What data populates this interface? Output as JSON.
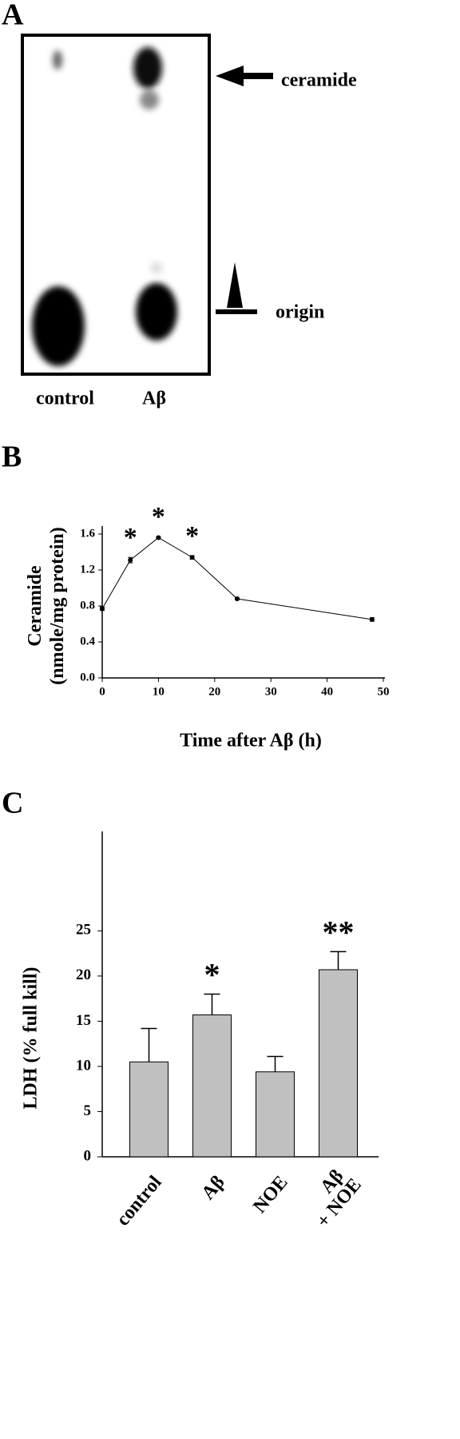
{
  "panel_a": {
    "label": "A",
    "band_labels": [
      "ceramide",
      "origin"
    ],
    "lanes": [
      "control",
      "Aβ"
    ]
  },
  "chart_data": [
    {
      "type": "line",
      "label": "B",
      "y_label": [
        "Ceramide",
        "(nmole/mg protein)"
      ],
      "x_label": "Time after Aβ (h)",
      "x": [
        0,
        5,
        10,
        16,
        24,
        48
      ],
      "values": [
        0.77,
        1.31,
        1.56,
        1.34,
        0.88,
        0.65
      ],
      "errors": [
        0.02,
        0.03,
        0.01,
        0.02,
        0.01,
        0.02
      ],
      "annotations": [
        null,
        "*",
        "*",
        "*",
        null,
        null
      ],
      "color": "#000000",
      "xlim": [
        0,
        50
      ],
      "xticks": [
        0,
        10,
        20,
        30,
        40,
        50
      ],
      "ylim": [
        0,
        1.6
      ],
      "yticks": [
        {
          "value": 0,
          "label": "0.0"
        },
        0.4,
        0.8,
        1.2,
        1.6
      ]
    },
    {
      "type": "bar",
      "label": "C",
      "y_label": "LDH (% full kill)",
      "categories": [
        [
          "control"
        ],
        [
          "Aβ"
        ],
        [
          "NOE"
        ],
        [
          "Aβ",
          "+ NOE"
        ]
      ],
      "values": [
        10.5,
        15.7,
        9.4,
        20.7
      ],
      "errors": [
        3.7,
        2.3,
        1.7,
        2.0
      ],
      "annotations": [
        null,
        "*",
        null,
        "**"
      ],
      "color": "#c0c0c0",
      "ylim": [
        0,
        36
      ],
      "yticks": [
        0,
        5,
        10,
        15,
        20,
        25
      ]
    }
  ]
}
